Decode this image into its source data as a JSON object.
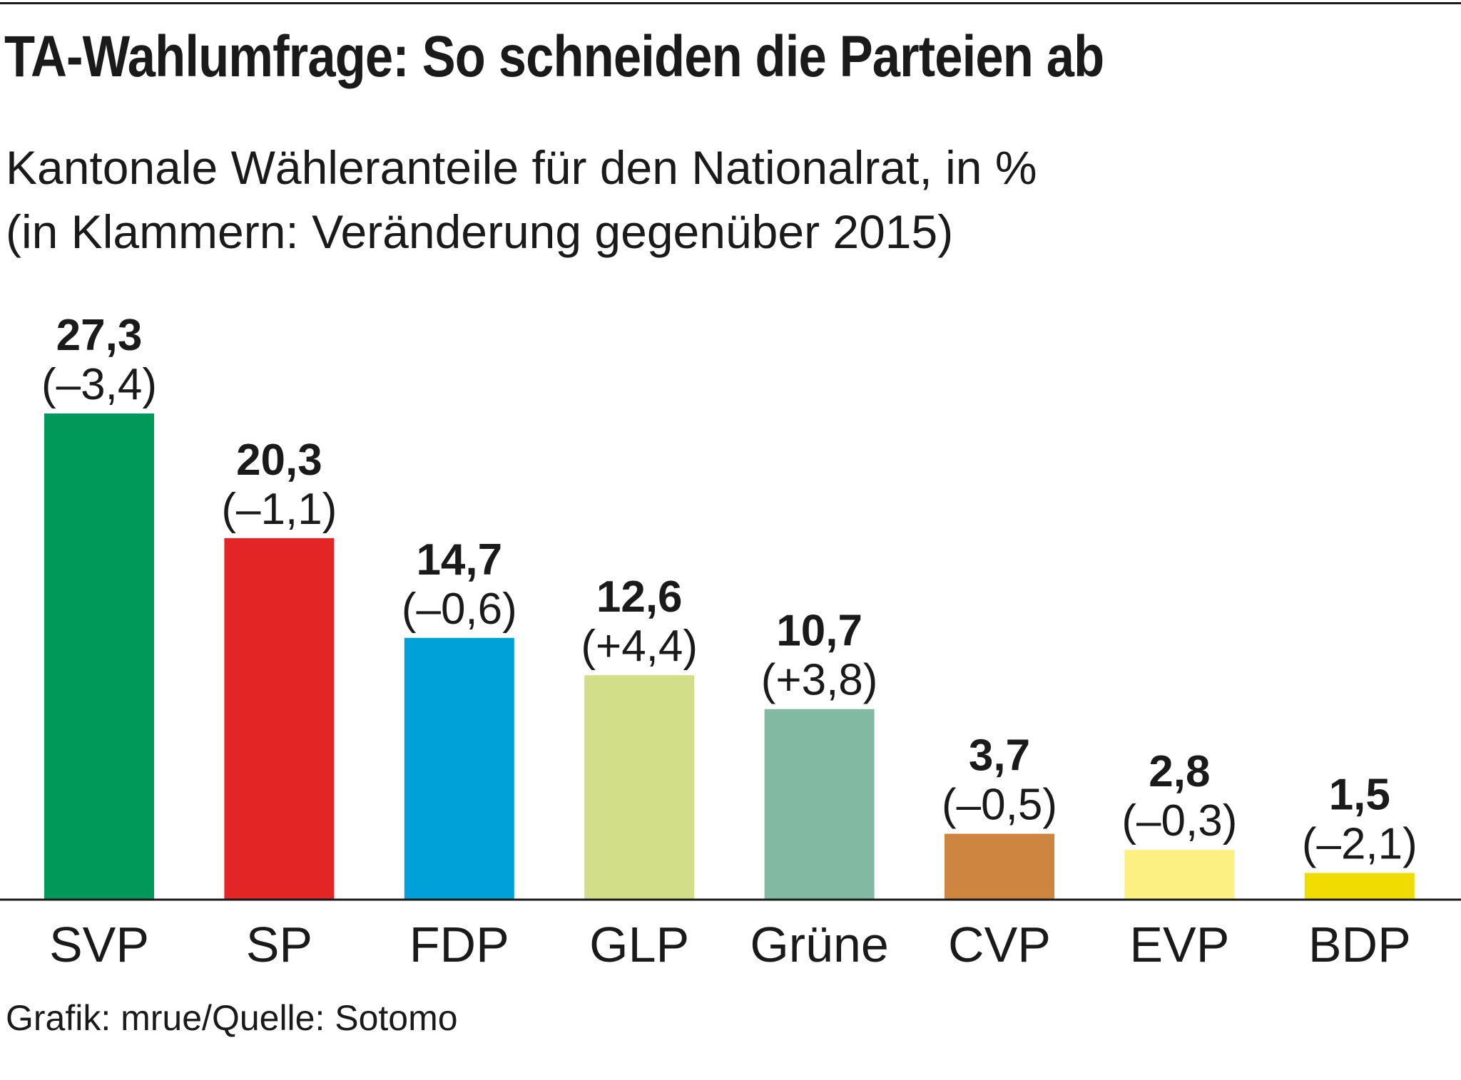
{
  "header": {
    "title": "TA-Wahlumfrage: So schneiden die Parteien ab",
    "subtitle_line1": "Kantonale Wähleranteile für den Nationalrat, in %",
    "subtitle_line2": "(in Klammern: Veränderung gegenüber 2015)"
  },
  "footer": {
    "source": "Grafik: mrue/Quelle: Sotomo"
  },
  "chart_data": {
    "type": "bar",
    "title": "TA-Wahlumfrage: So schneiden die Parteien ab",
    "subtitle": "Kantonale Wähleranteile für den Nationalrat, in % (in Klammern: Veränderung gegenüber 2015)",
    "xlabel": "",
    "ylabel": "",
    "ylim": [
      0,
      27.3
    ],
    "grid": false,
    "legend": "none",
    "categories": [
      "SVP",
      "SP",
      "FDP",
      "GLP",
      "Grüne",
      "CVP",
      "EVP",
      "BDP"
    ],
    "values": [
      27.3,
      20.3,
      14.7,
      12.6,
      10.7,
      3.7,
      2.8,
      1.5
    ],
    "value_labels": [
      "27,3",
      "20,3",
      "14,7",
      "12,6",
      "10,7",
      "3,7",
      "2,8",
      "1,5"
    ],
    "change_labels": [
      "(–3,4)",
      "(–1,1)",
      "(–0,6)",
      "(+4,4)",
      "(+3,8)",
      "(–0,5)",
      "(–0,3)",
      "(–2,1)"
    ],
    "colors": [
      "#00995a",
      "#e32526",
      "#00a0d9",
      "#d3df88",
      "#82b9a2",
      "#ce853f",
      "#fcf082",
      "#f0dc00"
    ]
  }
}
